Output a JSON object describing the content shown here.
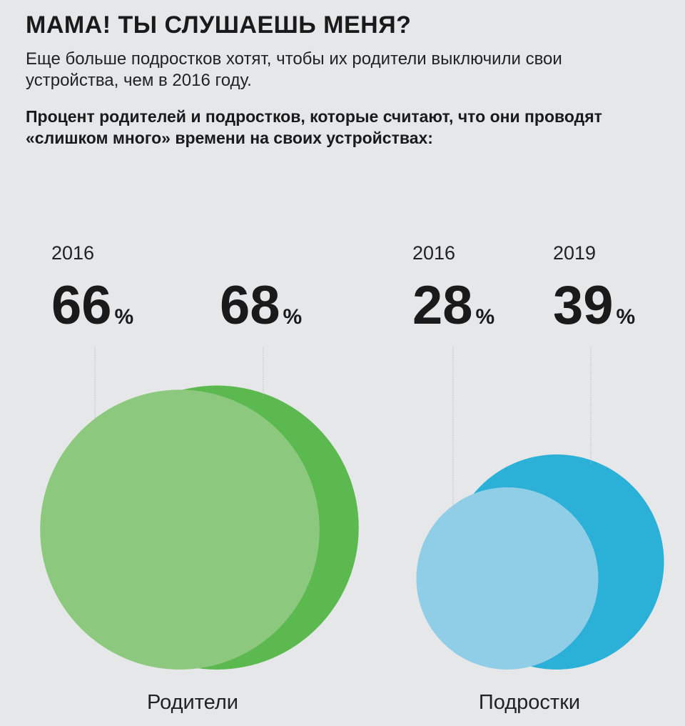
{
  "header": {
    "title": "МАМА! ТЫ СЛУШАЕШЬ МЕНЯ?",
    "subtitle": "Еще больше подростков хотят, чтобы их родители выключили свои устройства, чем в 2016 году.",
    "question": "Процент родителей и подростков, которые считают, что они проводят «слишком много» времени на своих устройствах:"
  },
  "chart_data": {
    "type": "bubble",
    "title": "Процент родителей и подростков, которые считают, что они проводят «слишком много» времени на своих устройствах:",
    "categories": [
      "Родители",
      "Подростки"
    ],
    "series": [
      {
        "name": "2016",
        "values": [
          66,
          28
        ]
      },
      {
        "name": "2019",
        "values": [
          68,
          39
        ]
      }
    ],
    "value_suffix": "%",
    "groups": [
      {
        "label": "Родители",
        "points": [
          {
            "year": "2016",
            "year_label": "2016",
            "value": 66,
            "color": "#8cc97e"
          },
          {
            "year": "2019",
            "year_label": "",
            "value": 68,
            "color": "#5cb950"
          }
        ]
      },
      {
        "label": "Подростки",
        "points": [
          {
            "year": "2016",
            "year_label": "2016",
            "value": 28,
            "color": "#90cde6"
          },
          {
            "year": "2019",
            "year_label": "2019",
            "value": 39,
            "color": "#2bb0d8"
          }
        ]
      }
    ]
  }
}
